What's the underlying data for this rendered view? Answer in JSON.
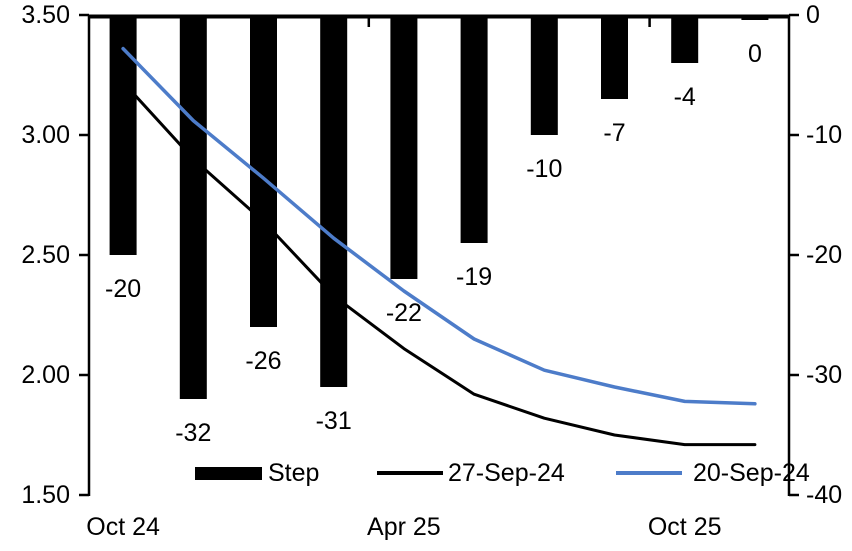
{
  "chart_data": {
    "type": "combo-bar-line",
    "title": "",
    "categories_count": 10,
    "x_tick_labels": [
      {
        "index": 0,
        "label": "Oct 24"
      },
      {
        "index": 4,
        "label": "Apr 25"
      },
      {
        "index": 8,
        "label": "Oct 25"
      }
    ],
    "x_tick_interval": 4,
    "bar_series": {
      "name": "Step",
      "axis": "right",
      "color": "#000000",
      "values": [
        -20,
        -32,
        -26,
        -31,
        -22,
        -19,
        -10,
        -7,
        -4,
        0
      ],
      "data_labels": [
        "-20",
        "-32",
        "-26",
        "-31",
        "-22",
        "-19",
        "-10",
        "-7",
        "-4",
        "0"
      ]
    },
    "line_series": [
      {
        "name": "27-Sep-24",
        "axis": "left",
        "color": "#000000",
        "width": 3,
        "values": [
          3.22,
          2.9,
          2.64,
          2.33,
          2.11,
          1.92,
          1.82,
          1.75,
          1.71,
          1.71
        ]
      },
      {
        "name": "20-Sep-24",
        "axis": "left",
        "color": "#4D7CC9",
        "width": 3.5,
        "values": [
          3.36,
          3.06,
          2.82,
          2.57,
          2.35,
          2.15,
          2.02,
          1.95,
          1.89,
          1.88
        ]
      }
    ],
    "left_axis": {
      "min": 1.5,
      "max": 3.5,
      "tick_step": 0.5,
      "tick_labels": [
        "3.50",
        "3.00",
        "2.50",
        "2.00",
        "1.50"
      ]
    },
    "right_axis": {
      "min": -40,
      "max": 0,
      "tick_step": 10,
      "tick_labels": [
        "0",
        "-10",
        "-20",
        "-30",
        "-40"
      ]
    },
    "grid": "off",
    "legend": {
      "position": "bottom-inside",
      "items": [
        {
          "label": "Step",
          "type": "bar",
          "color": "#000000"
        },
        {
          "label": "27-Sep-24",
          "type": "line",
          "color": "#000000"
        },
        {
          "label": "20-Sep-24",
          "type": "line",
          "color": "#4D7CC9"
        }
      ]
    }
  }
}
